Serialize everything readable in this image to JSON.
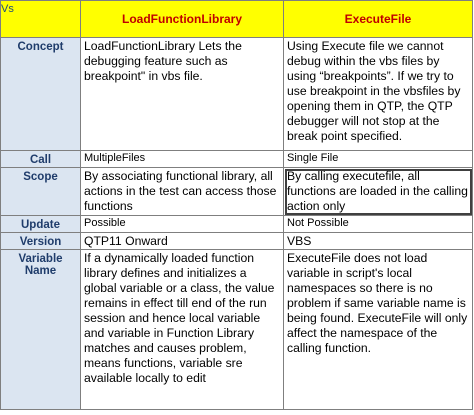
{
  "header": {
    "corner_label": "Vs",
    "col1": "LoadFunctionLibrary",
    "col2": "ExecuteFile"
  },
  "rows": [
    {
      "label": "Concept",
      "col1": "LoadFunctionLibrary Lets the debugging feature such as breakpoint\" in vbs file.",
      "col2": "Using Execute file we cannot debug within the vbs files by using “breakpoints”. If we try to use breakpoint in the vbsfiles by opening them in QTP, the QTP debugger will not stop at the break point specified."
    },
    {
      "label": "Call",
      "col1": "MultipleFiles",
      "col2": "Single File"
    },
    {
      "label": "Scope",
      "col1": "By associating functional library, all actions in the test can access those functions",
      "col2": "By calling executefile, all functions are loaded in the calling action only"
    },
    {
      "label": "Update",
      "col1": "Possible",
      "col2": "Not Possible"
    },
    {
      "label": "Version",
      "col1": "QTP11 Onward",
      "col2": "VBS"
    },
    {
      "label": "Variable Name",
      "col1": "If a dynamically loaded function library defines and initializes a global variable or a class, the value remains in effect till end of the run session and hence local variable and variable in Function Library matches and causes problem, means functions, variable sre available locally to edit",
      "col2": "ExecuteFile does not load variable in script's local namespaces so there is no problem if same variable name is being found. ExecuteFile will only affect the namespace of the calling function."
    }
  ]
}
